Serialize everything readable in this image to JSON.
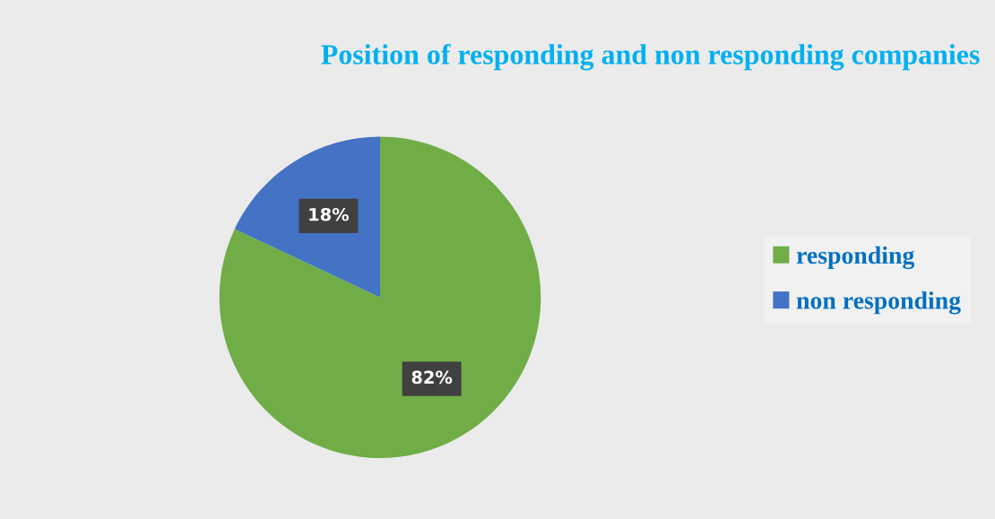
{
  "chart_data": {
    "type": "pie",
    "title": "Position of responding and non responding companies",
    "categories": [
      "responding",
      "non responding"
    ],
    "values": [
      82,
      18
    ],
    "colors": [
      "#70ad47",
      "#4472c4"
    ],
    "value_labels": [
      "82%",
      "18%"
    ],
    "legend": "right"
  }
}
